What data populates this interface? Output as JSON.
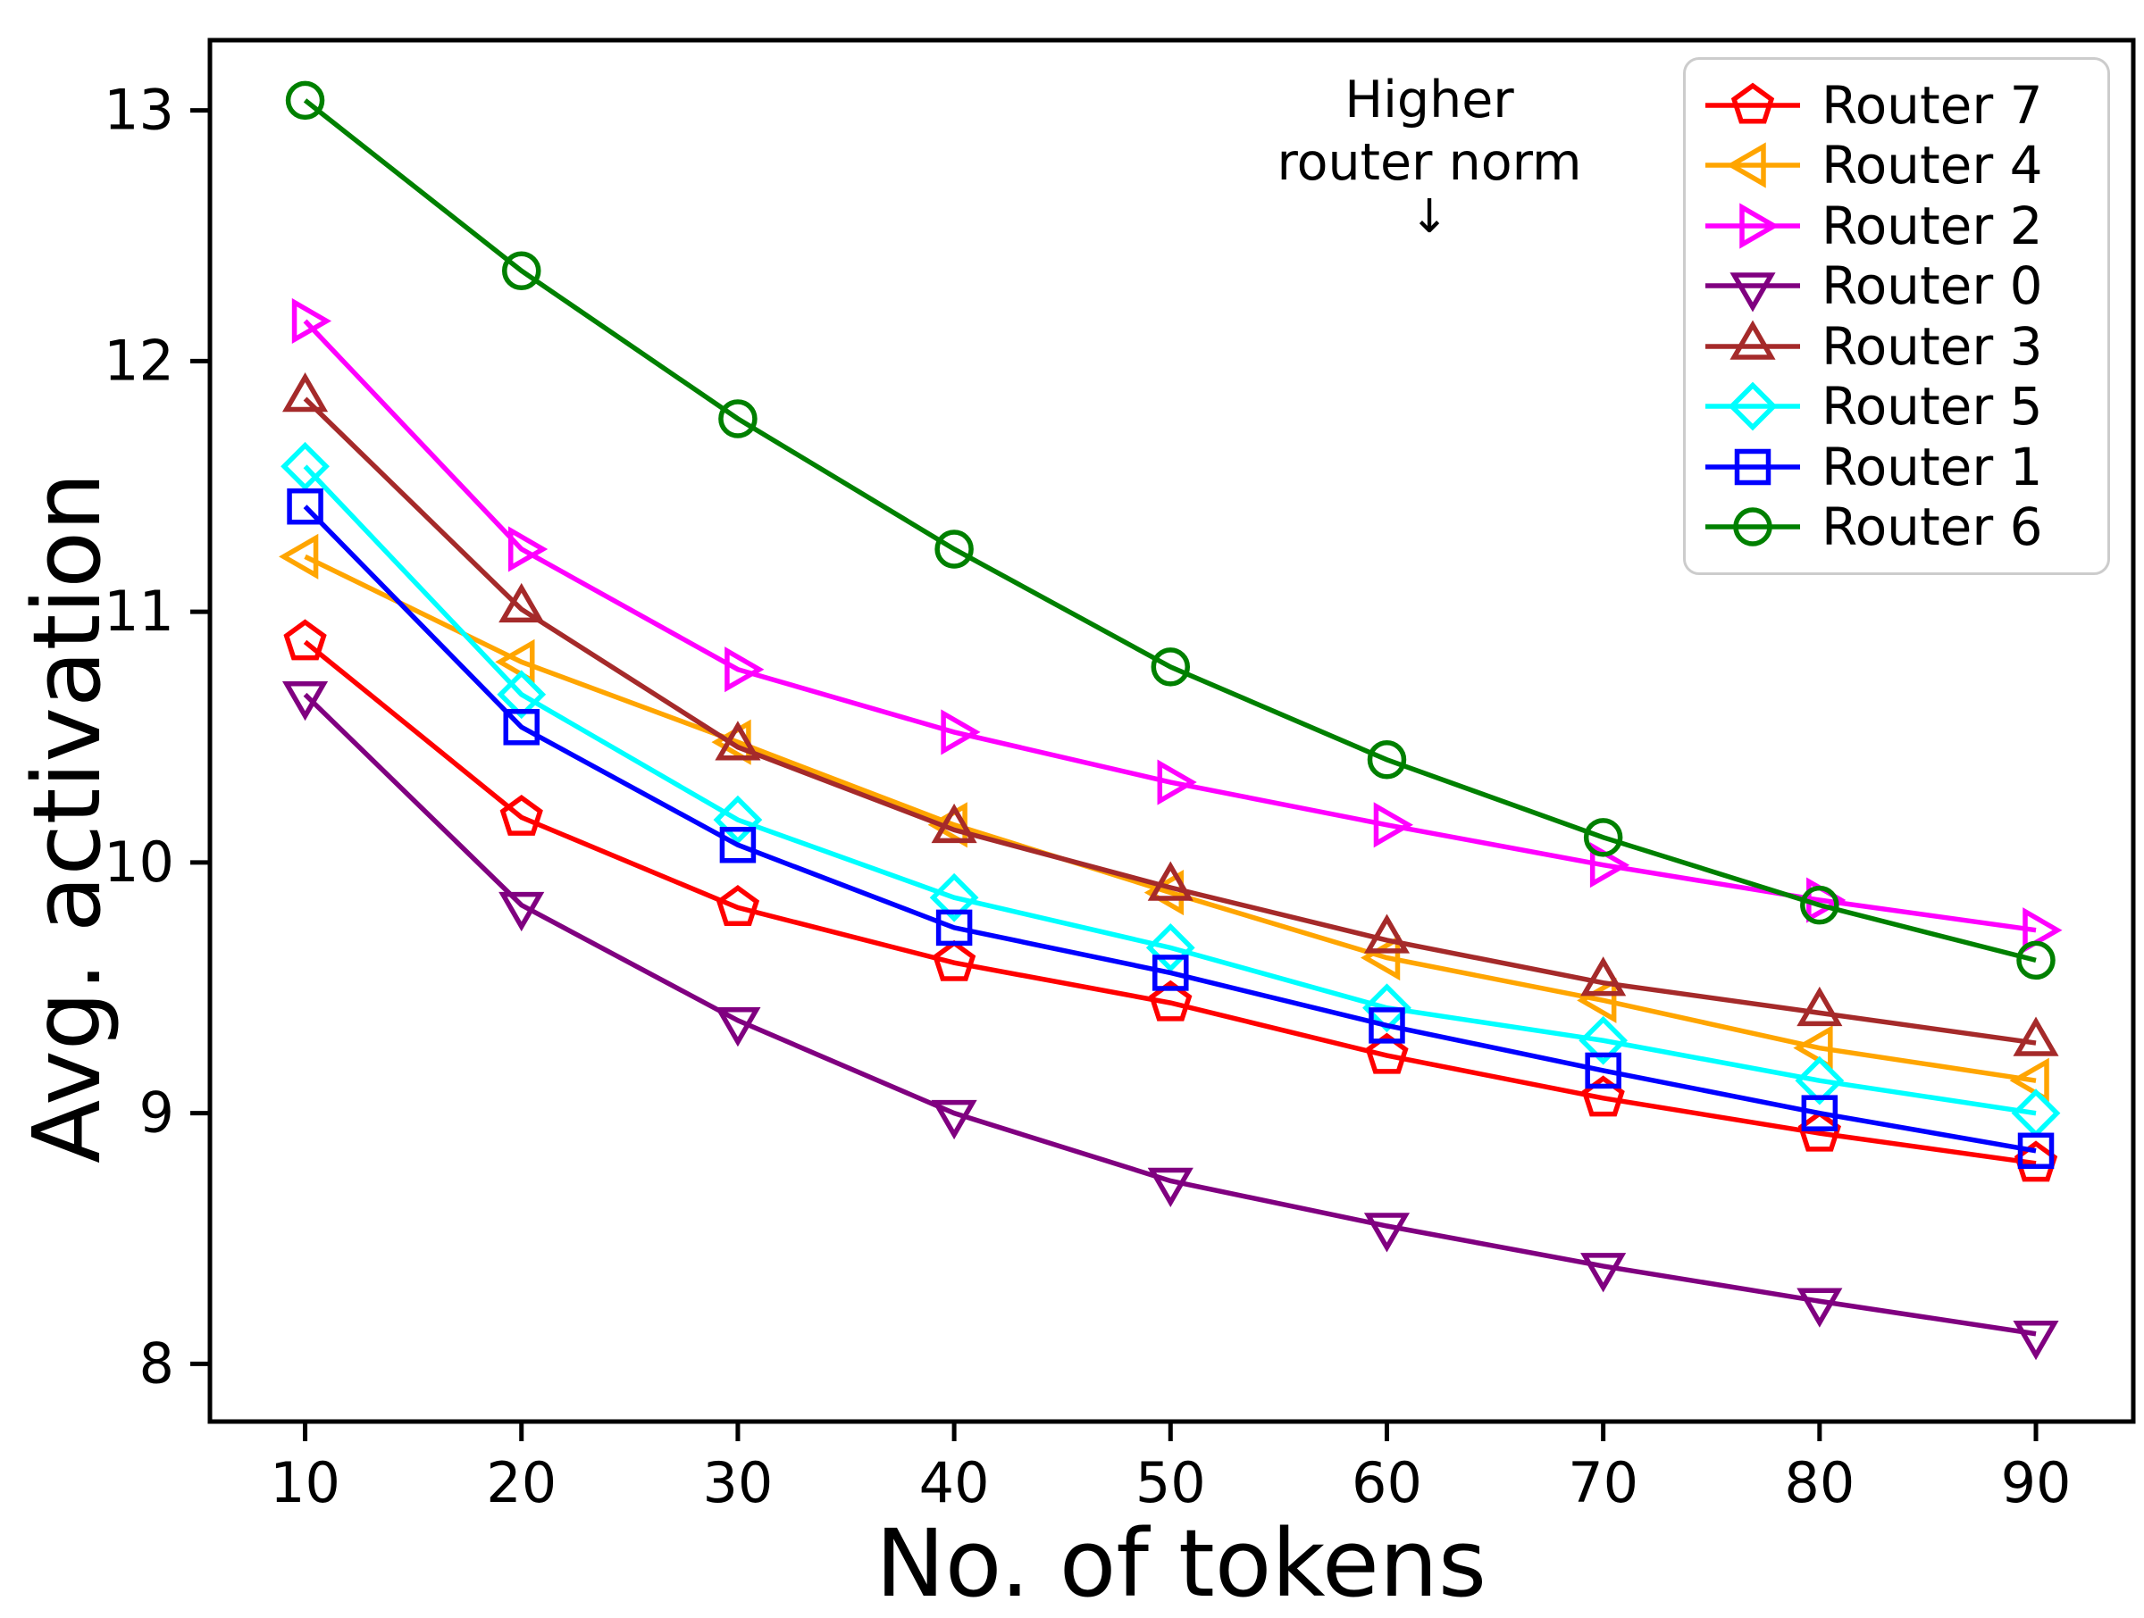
{
  "figure": {
    "background": "#ffffff"
  },
  "axes": {
    "xlabel": "No. of tokens",
    "ylabel": "Avg. activation",
    "x_tick_labels": [
      "10",
      "20",
      "30",
      "40",
      "50",
      "60",
      "70",
      "80",
      "90"
    ],
    "y_tick_labels": [
      "8",
      "9",
      "10",
      "11",
      "12",
      "13"
    ]
  },
  "annotation": {
    "line1": "Higher",
    "line2": "router norm",
    "arrow": "↓"
  },
  "chart_data": {
    "type": "line",
    "title": "",
    "xlabel": "No. of tokens",
    "ylabel": "Avg. activation",
    "x": [
      10,
      20,
      30,
      40,
      50,
      60,
      70,
      80,
      90
    ],
    "x_ticks": [
      10,
      20,
      30,
      40,
      50,
      60,
      70,
      80,
      90
    ],
    "y_ticks": [
      8,
      9,
      10,
      11,
      12,
      13
    ],
    "xlim": [
      5.6,
      94.5
    ],
    "ylim": [
      7.77,
      13.28
    ],
    "grid": false,
    "legend_position": "upper right",
    "series": [
      {
        "name": "Router 7",
        "color": "#ff0000",
        "marker": "pentagon",
        "values": [
          10.88,
          10.18,
          9.82,
          9.6,
          9.44,
          9.23,
          9.06,
          8.92,
          8.8
        ]
      },
      {
        "name": "Router 4",
        "color": "#ffa500",
        "marker": "triangle-left",
        "values": [
          11.22,
          10.8,
          10.48,
          10.15,
          9.88,
          9.62,
          9.45,
          9.26,
          9.13
        ]
      },
      {
        "name": "Router 2",
        "color": "#ff00ff",
        "marker": "triangle-right",
        "values": [
          12.16,
          11.25,
          10.77,
          10.52,
          10.32,
          10.15,
          9.99,
          9.85,
          9.73
        ]
      },
      {
        "name": "Router 0",
        "color": "#800080",
        "marker": "triangle-down",
        "values": [
          10.67,
          9.83,
          9.37,
          9.0,
          8.73,
          8.55,
          8.39,
          8.25,
          8.12
        ]
      },
      {
        "name": "Router 3",
        "color": "#a52a2a",
        "marker": "triangle-up",
        "values": [
          11.85,
          11.01,
          10.46,
          10.13,
          9.9,
          9.69,
          9.52,
          9.4,
          9.28
        ]
      },
      {
        "name": "Router 5",
        "color": "#00ffff",
        "marker": "diamond",
        "values": [
          11.58,
          10.67,
          10.17,
          9.86,
          9.66,
          9.42,
          9.29,
          9.13,
          9.0
        ]
      },
      {
        "name": "Router 1",
        "color": "#0000ff",
        "marker": "square",
        "values": [
          11.42,
          10.54,
          10.07,
          9.74,
          9.56,
          9.35,
          9.17,
          9.0,
          8.85
        ]
      },
      {
        "name": "Router 6",
        "color": "#008000",
        "marker": "circle",
        "values": [
          13.04,
          12.36,
          11.77,
          11.25,
          10.78,
          10.41,
          10.1,
          9.83,
          9.61
        ]
      }
    ]
  }
}
